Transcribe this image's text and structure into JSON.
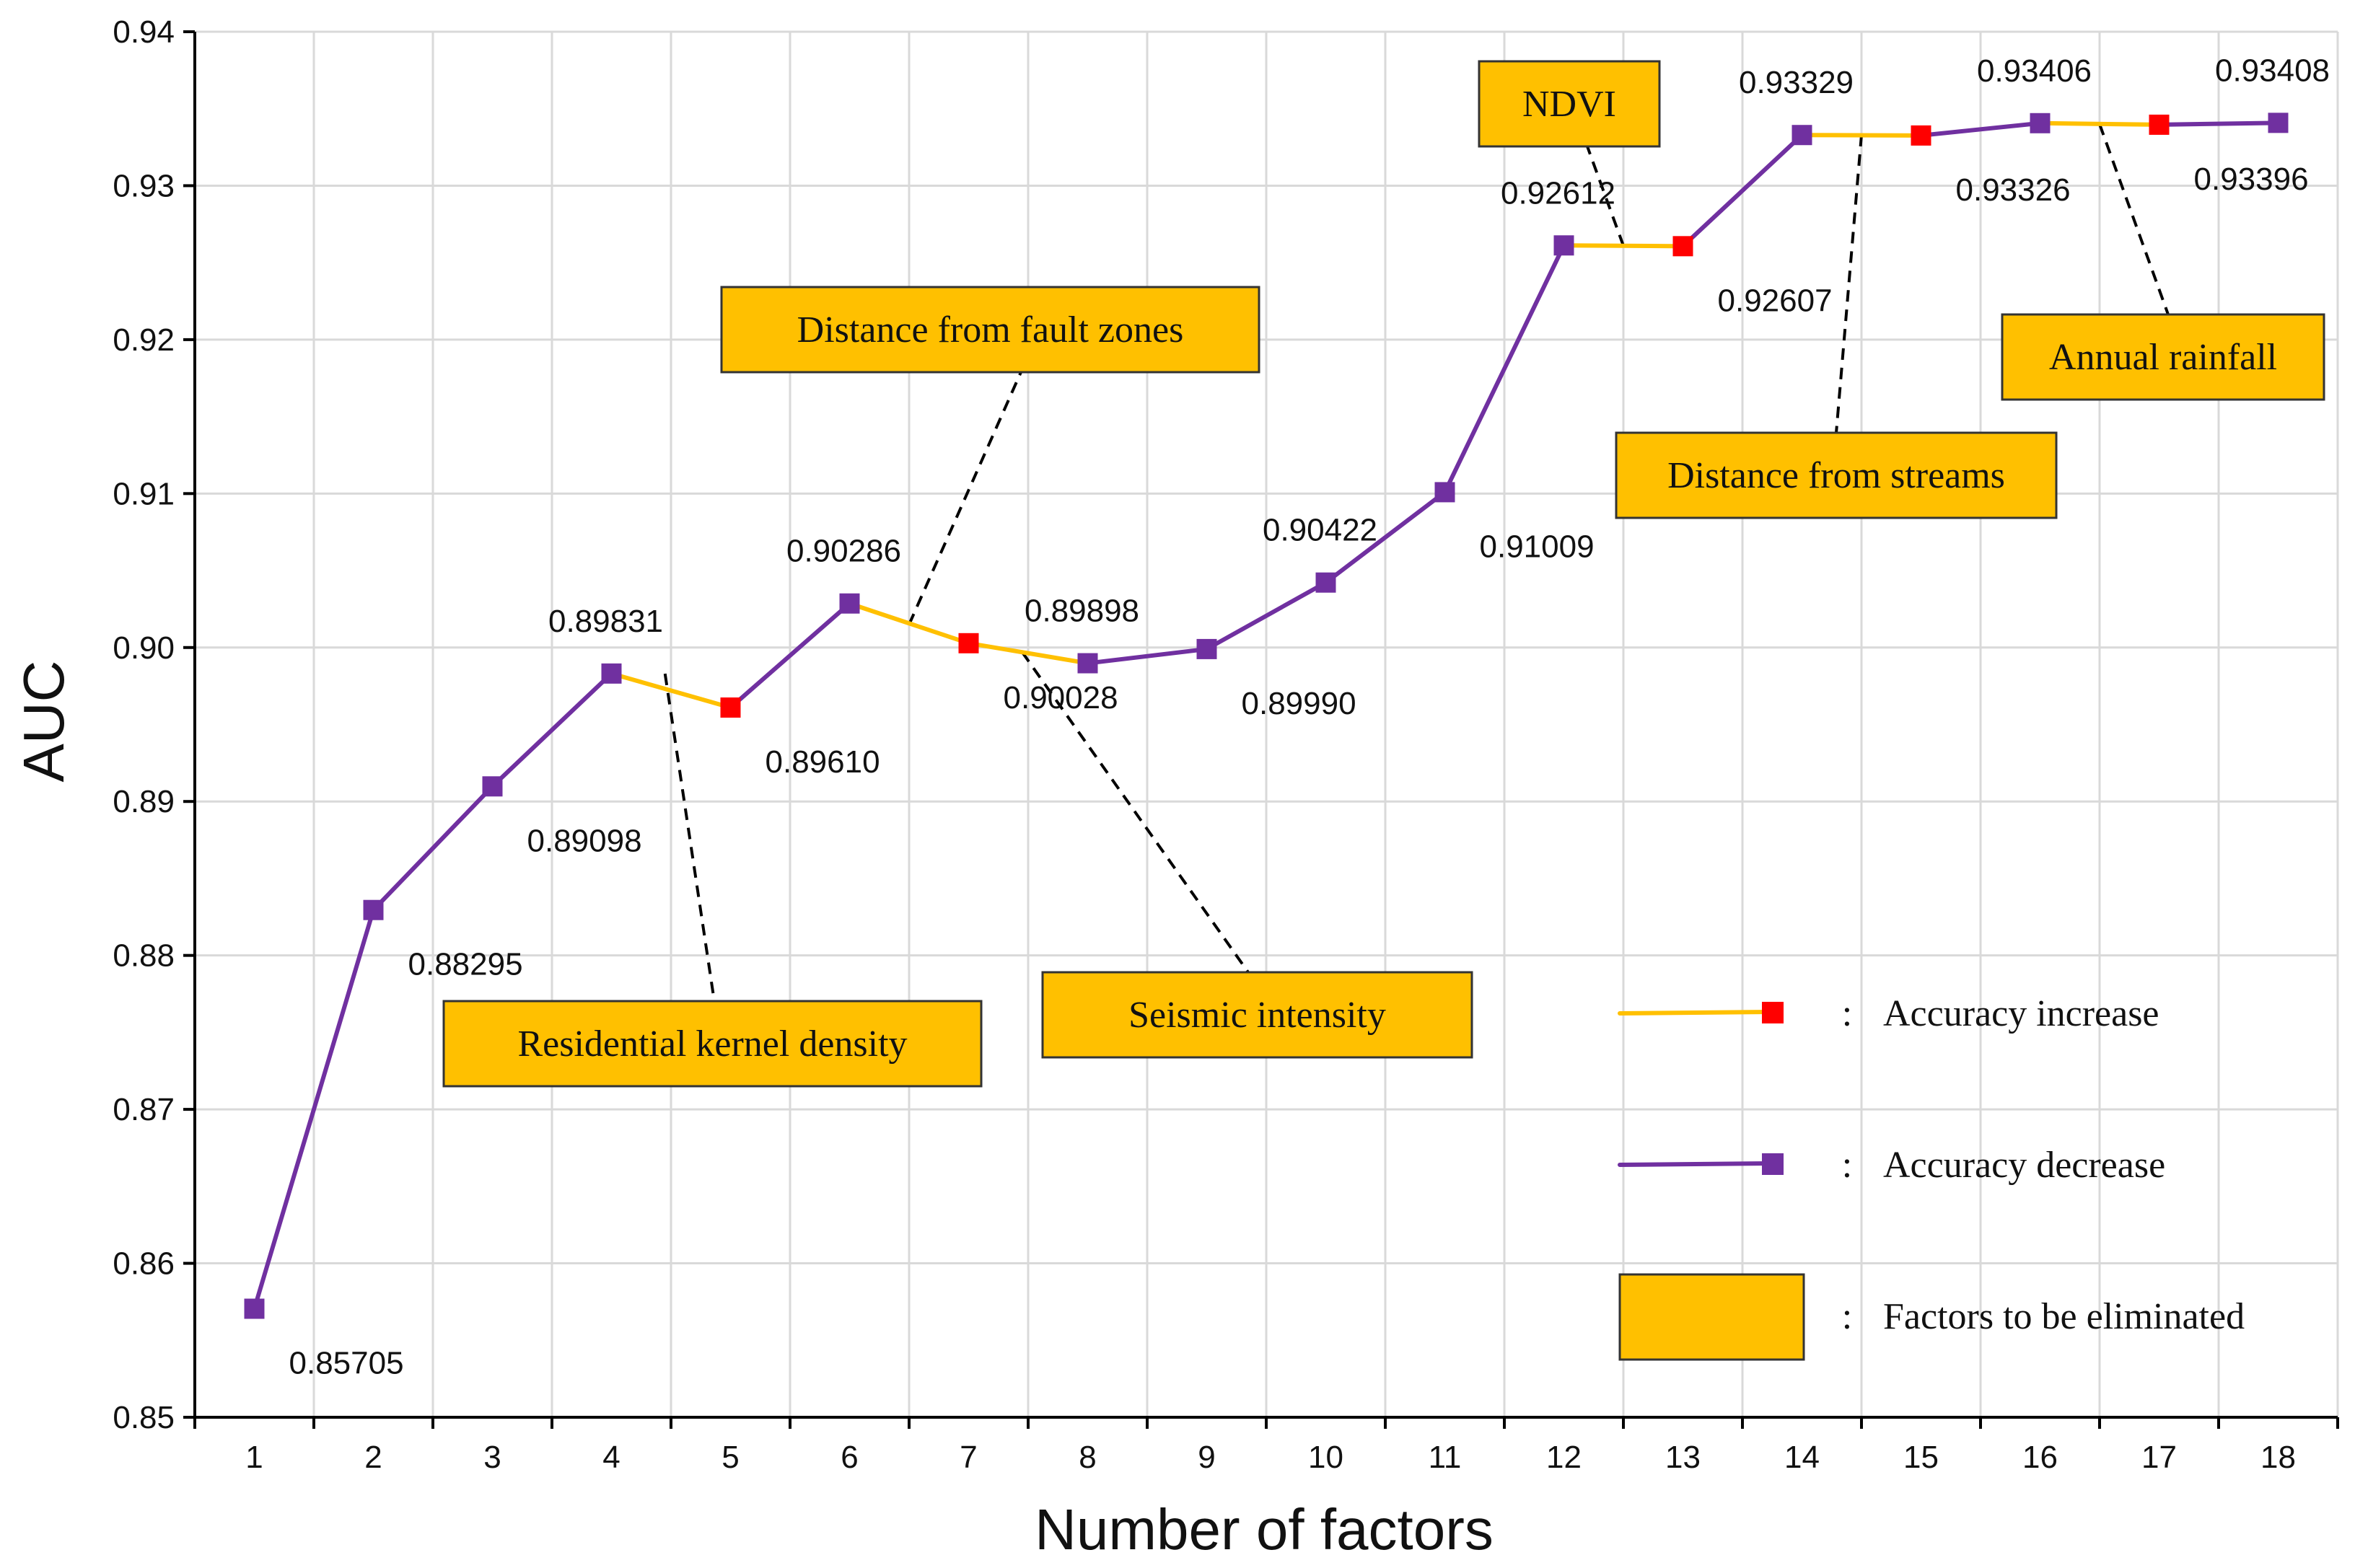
{
  "colors": {
    "increase_line": "#FFC000",
    "increase_marker": "#FF0000",
    "decrease_line": "#7030A0",
    "decrease_marker": "#7030A0",
    "annotation_fill": "#FFC000",
    "grid": "#D9D9D9",
    "axis": "#000000"
  },
  "chart_data": {
    "type": "line",
    "title": "",
    "xlabel": "Number of factors",
    "ylabel": "AUC",
    "xlim": [
      0.5,
      18.5
    ],
    "ylim": [
      0.85,
      0.94
    ],
    "grid": true,
    "yticks": [
      "0.85",
      "0.86",
      "0.87",
      "0.88",
      "0.89",
      "0.90",
      "0.91",
      "0.92",
      "0.93",
      "0.94"
    ],
    "x": [
      1,
      2,
      3,
      4,
      5,
      6,
      7,
      8,
      9,
      10,
      11,
      12,
      13,
      14,
      15,
      16,
      17,
      18
    ],
    "xticks": [
      "1",
      "2",
      "3",
      "4",
      "5",
      "6",
      "7",
      "8",
      "9",
      "10",
      "11",
      "12",
      "13",
      "14",
      "15",
      "16",
      "17",
      "18"
    ],
    "auc": [
      0.85705,
      0.88295,
      0.89098,
      0.89831,
      0.8961,
      0.90286,
      0.90028,
      0.89898,
      0.8999,
      0.90422,
      0.91009,
      0.92612,
      0.92607,
      0.93329,
      0.93326,
      0.93406,
      0.93396,
      0.93408
    ],
    "point_labels": [
      "0.85705",
      "0.88295",
      "0.89098",
      "0.89831",
      "0.89610",
      "0.90286",
      "0.90028",
      "0.89898",
      "0.89990",
      "0.90422",
      "0.91009",
      "0.92612",
      "0.92607",
      "0.93329",
      "0.93326",
      "0.93406",
      "0.93396",
      "0.93408"
    ],
    "label_side": [
      "below",
      "below",
      "below",
      "above",
      "below",
      "above",
      "below",
      "above",
      "below",
      "above",
      "below",
      "above",
      "below",
      "above",
      "below",
      "above",
      "below",
      "above"
    ],
    "marker_type": [
      "decrease",
      "decrease",
      "decrease",
      "decrease",
      "increase",
      "decrease",
      "increase",
      "decrease",
      "decrease",
      "decrease",
      "decrease",
      "decrease",
      "increase",
      "decrease",
      "increase",
      "decrease",
      "increase",
      "decrease"
    ],
    "segment_type": [
      "decrease",
      "decrease",
      "decrease",
      "increase",
      "decrease",
      "increase",
      "increase",
      "decrease",
      "decrease",
      "decrease",
      "decrease",
      "increase",
      "decrease",
      "increase",
      "decrease",
      "increase",
      "decrease"
    ],
    "annotations": [
      {
        "text": "Residential kernel density",
        "anchor_x": 4.45,
        "anchor_y": 0.8983
      },
      {
        "text": "Distance from fault zones",
        "anchor_x": 6.5,
        "anchor_y": 0.9015
      },
      {
        "text": "Seismic intensity",
        "anchor_x": 7.45,
        "anchor_y": 0.8997
      },
      {
        "text": "NDVI",
        "anchor_x": 12.5,
        "anchor_y": 0.9261
      },
      {
        "text": "Distance from streams",
        "anchor_x": 14.5,
        "anchor_y": 0.9333
      },
      {
        "text": "Annual rainfall",
        "anchor_x": 16.5,
        "anchor_y": 0.934
      }
    ],
    "legend": [
      {
        "kind": "increase",
        "label": "Accuracy increase"
      },
      {
        "kind": "decrease",
        "label": "Accuracy decrease"
      },
      {
        "kind": "eliminated",
        "label": "Factors to be eliminated"
      }
    ],
    "legend_separator": ":"
  }
}
